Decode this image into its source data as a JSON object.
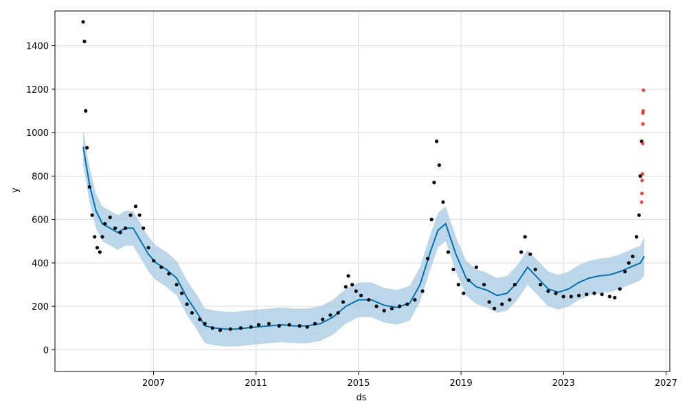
{
  "chart_data": {
    "type": "scatter",
    "title": "",
    "xlabel": "ds",
    "ylabel": "y",
    "xlim": [
      2003.15,
      2027.15
    ],
    "ylim": [
      -100,
      1560
    ],
    "grid": true,
    "x_ticks": [
      2007,
      2011,
      2015,
      2019,
      2023,
      2027
    ],
    "x_tick_labels": [
      "2007",
      "2011",
      "2015",
      "2019",
      "2023",
      "2027"
    ],
    "y_ticks": [
      0,
      200,
      400,
      600,
      800,
      1000,
      1200,
      1400
    ],
    "y_tick_labels": [
      "0",
      "200",
      "400",
      "600",
      "800",
      "1000",
      "1200",
      "1400"
    ],
    "colors": {
      "observed": "#000000",
      "outlier": "#e8282a",
      "forecast": "#0072b2",
      "interval": "#a6c9e2"
    },
    "series": [
      {
        "kind": "observed",
        "x": [
          2004.25,
          2004.3,
          2004.35,
          2004.4,
          2004.5,
          2004.6,
          2004.7,
          2004.8,
          2004.9,
          2005.0,
          2005.1,
          2005.3,
          2005.5,
          2005.7,
          2005.9,
          2006.1,
          2006.3,
          2006.45,
          2006.6,
          2006.8,
          2007.0,
          2007.3,
          2007.6,
          2007.9,
          2008.1,
          2008.3,
          2008.5,
          2008.8,
          2009.0,
          2009.3,
          2009.6,
          2010.0,
          2010.4,
          2010.8,
          2011.1,
          2011.5,
          2011.9,
          2012.3,
          2012.7,
          2013.0,
          2013.3,
          2013.6,
          2013.9,
          2014.2,
          2014.4,
          2014.5,
          2014.6,
          2014.75,
          2014.9,
          2015.1,
          2015.4,
          2015.7,
          2016.0,
          2016.3,
          2016.6,
          2016.9,
          2017.2,
          2017.5,
          2017.7,
          2017.85,
          2017.95,
          2018.05,
          2018.15,
          2018.3,
          2018.5,
          2018.7,
          2018.9,
          2019.1,
          2019.3,
          2019.6,
          2019.9,
          2020.1,
          2020.3,
          2020.6,
          2020.9,
          2021.1,
          2021.35,
          2021.5,
          2021.7,
          2021.9,
          2022.1,
          2022.4,
          2022.7,
          2023.0,
          2023.3,
          2023.6,
          2023.9,
          2024.2,
          2024.5,
          2024.8,
          2025.0,
          2025.2,
          2025.4,
          2025.55,
          2025.7,
          2025.85,
          2025.95,
          2026.0,
          2026.05
        ],
        "y": [
          1510,
          1420,
          1100,
          930,
          750,
          620,
          520,
          470,
          450,
          520,
          580,
          610,
          560,
          540,
          560,
          620,
          660,
          620,
          560,
          470,
          410,
          380,
          350,
          300,
          260,
          210,
          170,
          140,
          120,
          100,
          90,
          95,
          100,
          105,
          115,
          120,
          110,
          115,
          110,
          105,
          120,
          140,
          160,
          170,
          220,
          290,
          340,
          300,
          270,
          250,
          230,
          200,
          180,
          190,
          200,
          210,
          230,
          270,
          420,
          600,
          770,
          960,
          850,
          680,
          450,
          370,
          300,
          260,
          320,
          380,
          300,
          220,
          190,
          210,
          230,
          300,
          450,
          520,
          440,
          370,
          300,
          270,
          260,
          245,
          245,
          250,
          255,
          260,
          255,
          245,
          240,
          280,
          360,
          400,
          430,
          520,
          620,
          800,
          960
        ]
      },
      {
        "kind": "outlier",
        "x": [
          2026.05,
          2026.06,
          2026.07,
          2026.08,
          2026.09,
          2026.1,
          2026.1,
          2026.11,
          2026.12
        ],
        "y": [
          680,
          720,
          780,
          810,
          950,
          1040,
          1090,
          1100,
          1195
        ]
      },
      {
        "kind": "forecast",
        "x": [
          2004.25,
          2004.5,
          2004.75,
          2005.0,
          2005.3,
          2005.6,
          2005.9,
          2006.2,
          2006.5,
          2006.8,
          2007.1,
          2007.5,
          2007.9,
          2008.3,
          2008.7,
          2009.0,
          2009.4,
          2009.8,
          2010.2,
          2010.6,
          2011.0,
          2011.5,
          2012.0,
          2012.5,
          2013.0,
          2013.5,
          2014.0,
          2014.5,
          2015.0,
          2015.5,
          2016.0,
          2016.5,
          2017.0,
          2017.4,
          2017.8,
          2018.1,
          2018.4,
          2018.8,
          2019.2,
          2019.6,
          2020.0,
          2020.4,
          2020.8,
          2021.2,
          2021.6,
          2022.0,
          2022.4,
          2022.8,
          2023.2,
          2023.6,
          2024.0,
          2024.4,
          2024.8,
          2025.2,
          2025.6,
          2026.0,
          2026.15
        ],
        "y": [
          935,
          760,
          640,
          580,
          560,
          540,
          560,
          560,
          500,
          440,
          400,
          370,
          330,
          240,
          170,
          110,
          100,
          95,
          95,
          100,
          105,
          110,
          115,
          110,
          110,
          120,
          150,
          200,
          230,
          230,
          205,
          195,
          215,
          300,
          450,
          550,
          580,
          440,
          330,
          290,
          275,
          250,
          260,
          310,
          380,
          330,
          280,
          265,
          280,
          310,
          330,
          340,
          345,
          360,
          380,
          400,
          430
        ]
      },
      {
        "kind": "interval",
        "x": [
          2004.25,
          2004.5,
          2004.75,
          2005.0,
          2005.3,
          2005.6,
          2005.9,
          2006.2,
          2006.5,
          2006.8,
          2007.1,
          2007.5,
          2007.9,
          2008.3,
          2008.7,
          2009.0,
          2009.4,
          2009.8,
          2010.2,
          2010.6,
          2011.0,
          2011.5,
          2012.0,
          2012.5,
          2013.0,
          2013.5,
          2014.0,
          2014.5,
          2015.0,
          2015.5,
          2016.0,
          2016.5,
          2017.0,
          2017.4,
          2017.8,
          2018.1,
          2018.4,
          2018.8,
          2019.2,
          2019.6,
          2020.0,
          2020.4,
          2020.8,
          2021.2,
          2021.6,
          2022.0,
          2022.4,
          2022.8,
          2023.2,
          2023.6,
          2024.0,
          2024.4,
          2024.8,
          2025.2,
          2025.6,
          2026.0,
          2026.15
        ],
        "lower": [
          850,
          680,
          560,
          500,
          480,
          460,
          480,
          480,
          420,
          360,
          320,
          290,
          250,
          160,
          90,
          30,
          20,
          15,
          15,
          20,
          25,
          30,
          35,
          30,
          30,
          40,
          70,
          120,
          150,
          150,
          125,
          115,
          135,
          220,
          370,
          470,
          500,
          360,
          250,
          210,
          195,
          170,
          180,
          230,
          300,
          250,
          200,
          185,
          200,
          230,
          250,
          260,
          265,
          280,
          300,
          320,
          340
        ],
        "upper": [
          1010,
          840,
          720,
          660,
          640,
          620,
          640,
          640,
          580,
          520,
          480,
          450,
          410,
          320,
          250,
          190,
          180,
          175,
          175,
          180,
          185,
          190,
          195,
          190,
          190,
          200,
          230,
          280,
          310,
          310,
          285,
          275,
          295,
          380,
          530,
          630,
          660,
          520,
          410,
          370,
          355,
          330,
          340,
          390,
          460,
          410,
          360,
          345,
          360,
          390,
          410,
          420,
          425,
          440,
          460,
          480,
          520
        ]
      }
    ]
  }
}
